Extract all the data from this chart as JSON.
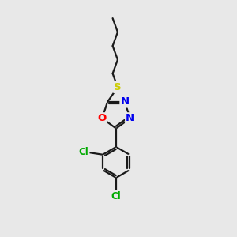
{
  "background_color": "#e8e8e8",
  "bond_color": "#1a1a1a",
  "S_color": "#cccc00",
  "O_color": "#ff0000",
  "N_color": "#0000ee",
  "Cl_color": "#00aa00",
  "bond_width": 1.6,
  "font_size_atom": 9.5,
  "font_size_Cl": 8.5,
  "fig_w": 3.0,
  "fig_h": 3.0,
  "dpi": 100,
  "xlim": [
    0,
    10
  ],
  "ylim": [
    0,
    10
  ]
}
